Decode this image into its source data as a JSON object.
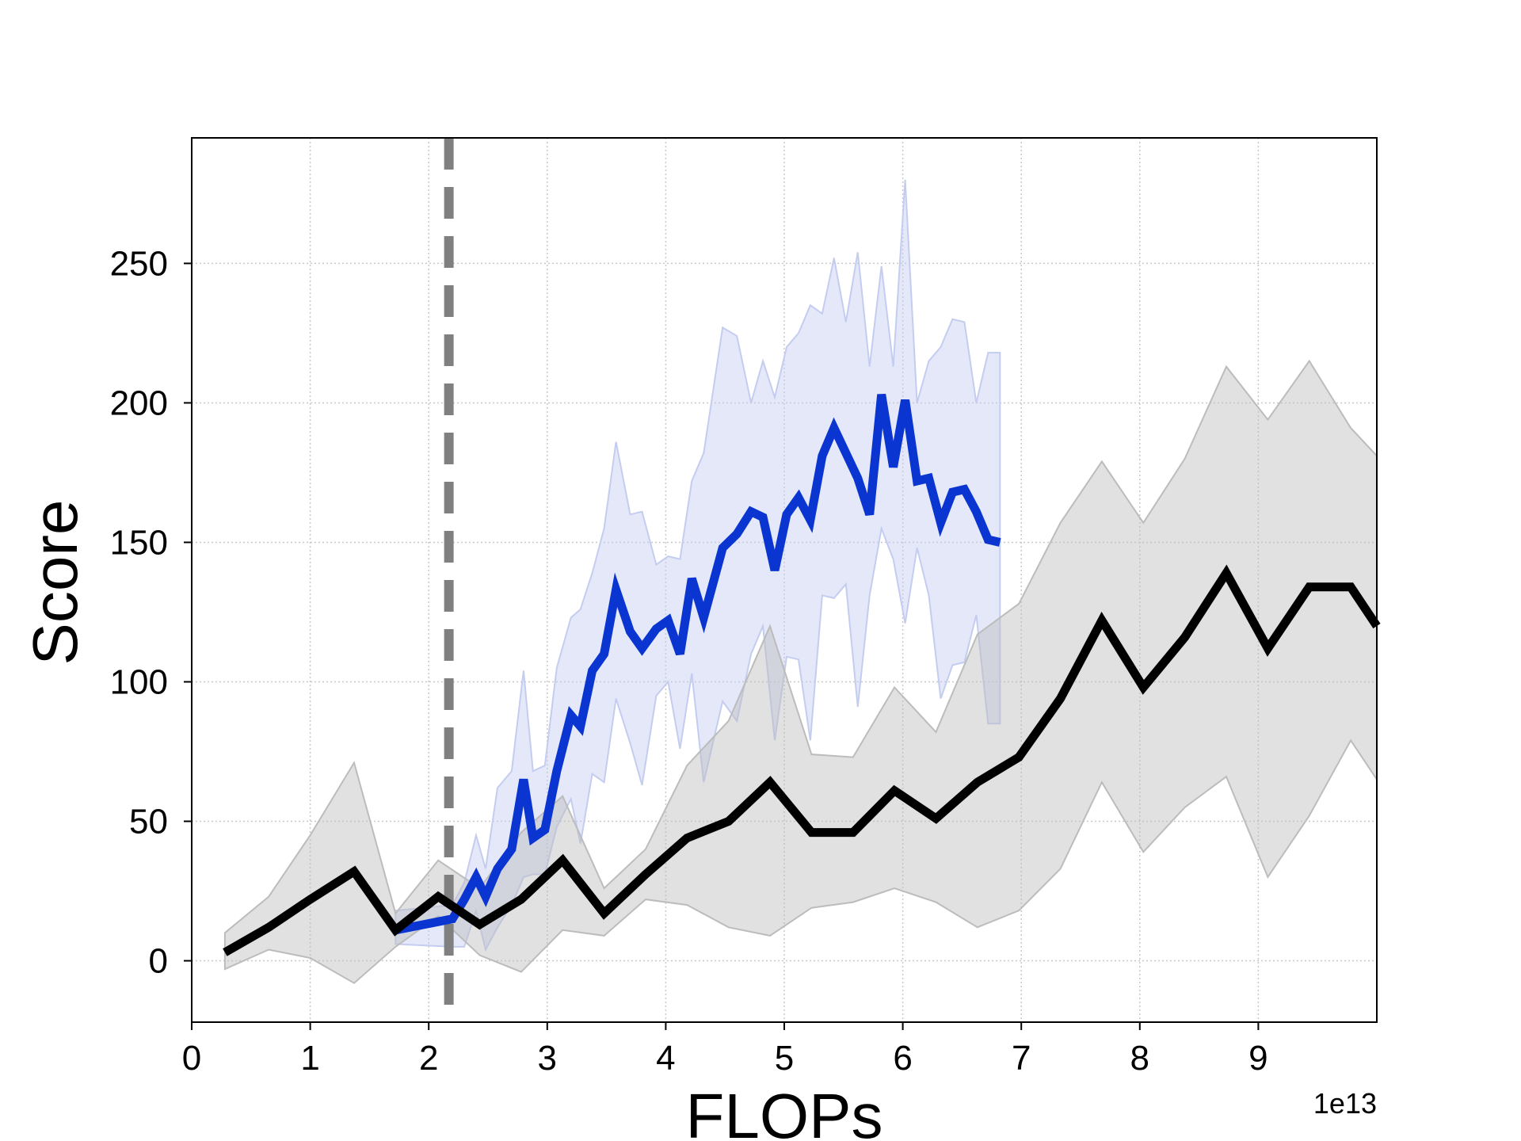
{
  "chart_data": {
    "type": "line",
    "title": "",
    "xlabel": "FLOPs",
    "ylabel": "Score",
    "x_offset_label": "1e13",
    "xlim": [
      0,
      10
    ],
    "ylim": [
      -22,
      295
    ],
    "xticks": [
      0,
      1,
      2,
      3,
      4,
      5,
      6,
      7,
      8,
      9
    ],
    "yticks": [
      0,
      50,
      100,
      150,
      200,
      250
    ],
    "grid": true,
    "legend": "none",
    "vline": {
      "x": 2.17,
      "style": "dashed",
      "color": "#808080"
    },
    "series": [
      {
        "color": "#0a35d0",
        "band_color": "#c4cdf0",
        "x": [
          1.72,
          2.2,
          2.3,
          2.4,
          2.48,
          2.58,
          2.7,
          2.8,
          2.88,
          2.98,
          3.08,
          3.2,
          3.28,
          3.38,
          3.48,
          3.58,
          3.7,
          3.8,
          3.92,
          4.02,
          4.12,
          4.22,
          4.32,
          4.48,
          4.6,
          4.72,
          4.82,
          4.92,
          5.02,
          5.12,
          5.22,
          5.32,
          5.42,
          5.52,
          5.62,
          5.72,
          5.82,
          5.92,
          6.02,
          6.12,
          6.22,
          6.32,
          6.42,
          6.52,
          6.62,
          6.72,
          6.82
        ],
        "y": [
          11,
          15,
          22,
          30,
          23,
          33,
          40,
          65,
          44,
          47,
          68,
          88,
          84,
          104,
          110,
          133,
          118,
          112,
          119,
          122,
          110,
          137,
          123,
          148,
          153,
          161,
          159,
          140,
          160,
          166,
          158,
          181,
          191,
          182,
          173,
          160,
          203,
          177,
          201,
          172,
          173,
          157,
          168,
          169,
          161,
          151,
          150
        ],
        "upper": [
          18,
          20,
          28,
          45,
          33,
          62,
          68,
          104,
          68,
          70,
          105,
          123,
          126,
          139,
          155,
          186,
          160,
          161,
          142,
          145,
          144,
          172,
          182,
          227,
          224,
          200,
          215,
          202,
          220,
          225,
          235,
          232,
          252,
          229,
          254,
          213,
          249,
          213,
          280,
          200,
          215,
          220,
          230,
          229,
          200,
          218,
          218
        ],
        "lower": [
          6,
          5,
          5,
          18,
          4,
          12,
          20,
          30,
          31,
          31,
          48,
          58,
          42,
          67,
          64,
          94,
          78,
          63,
          95,
          100,
          76,
          103,
          64,
          93,
          86,
          110,
          120,
          79,
          109,
          108,
          79,
          131,
          130,
          135,
          91,
          131,
          155,
          144,
          121,
          148,
          131,
          94,
          106,
          107,
          124,
          85,
          85
        ]
      },
      {
        "color": "#000000",
        "band_color": "#bcbcbc",
        "x": [
          0.28,
          0.65,
          1.0,
          1.37,
          1.72,
          2.08,
          2.43,
          2.78,
          3.13,
          3.48,
          3.83,
          4.18,
          4.53,
          4.88,
          5.23,
          5.58,
          5.93,
          6.28,
          6.63,
          6.98,
          7.33,
          7.68,
          8.03,
          8.38,
          8.73,
          9.08,
          9.43,
          9.78,
          10.0
        ],
        "y": [
          3,
          12,
          22,
          32,
          11,
          23,
          13,
          22,
          36,
          17,
          31,
          44,
          50,
          64,
          46,
          46,
          61,
          51,
          64,
          73,
          94,
          122,
          98,
          116,
          139,
          112,
          134,
          134,
          120
        ],
        "upper": [
          10,
          23,
          45,
          71,
          17,
          36,
          26,
          46,
          59,
          26,
          40,
          70,
          86,
          120,
          74,
          73,
          98,
          82,
          117,
          128,
          157,
          179,
          157,
          180,
          213,
          194,
          215,
          191,
          181
        ],
        "lower": [
          -3,
          4,
          1,
          -8,
          5,
          16,
          2,
          -4,
          11,
          9,
          22,
          20,
          12,
          9,
          19,
          21,
          26,
          21,
          12,
          18,
          33,
          64,
          39,
          55,
          66,
          30,
          52,
          79,
          65
        ]
      }
    ]
  }
}
